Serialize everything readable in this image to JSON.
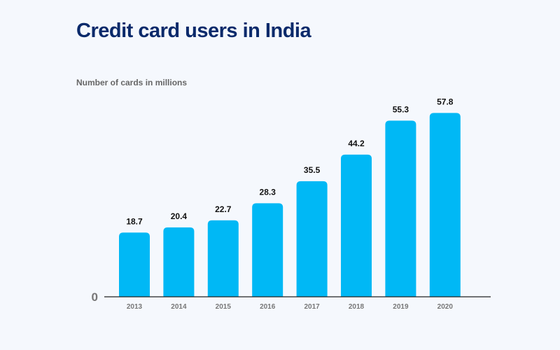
{
  "chart_data": {
    "type": "bar",
    "title": "Credit card users in India",
    "subtitle": "Number of cards in millions",
    "categories": [
      "2013",
      "2014",
      "2015",
      "2016",
      "2017",
      "2018",
      "2019",
      "2020"
    ],
    "values": [
      18.7,
      20.4,
      22.7,
      28.3,
      35.5,
      44.2,
      55.3,
      57.8
    ],
    "y_tick_labels": [
      "0"
    ],
    "ylim": [
      0,
      60
    ],
    "grid": false,
    "bar_color": "#00b8f5",
    "title_color": "#0a2a6b"
  }
}
